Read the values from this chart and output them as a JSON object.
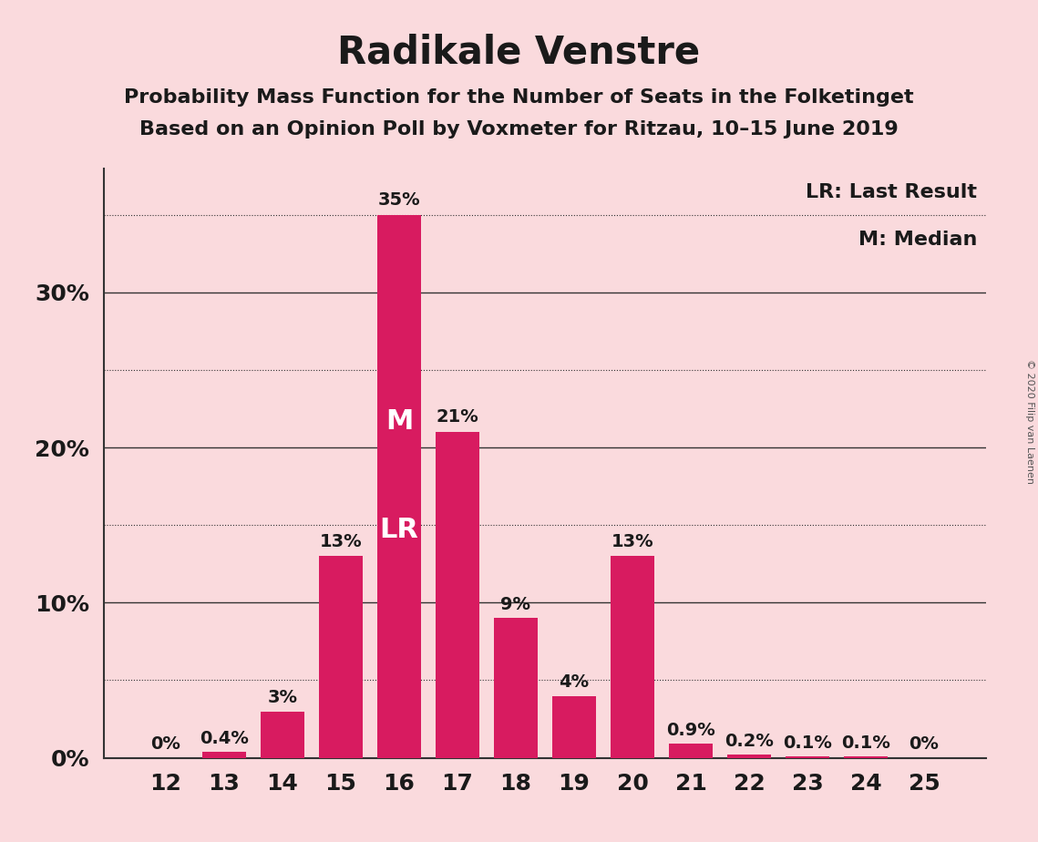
{
  "title": "Radikale Venstre",
  "subtitle1": "Probability Mass Function for the Number of Seats in the Folketinget",
  "subtitle2": "Based on an Opinion Poll by Voxmeter for Ritzau, 10–15 June 2019",
  "categories": [
    12,
    13,
    14,
    15,
    16,
    17,
    18,
    19,
    20,
    21,
    22,
    23,
    24,
    25
  ],
  "values": [
    0.0,
    0.4,
    3.0,
    13.0,
    35.0,
    21.0,
    9.0,
    4.0,
    13.0,
    0.9,
    0.2,
    0.1,
    0.1,
    0.0
  ],
  "labels": [
    "0%",
    "0.4%",
    "3%",
    "13%",
    "35%",
    "21%",
    "9%",
    "4%",
    "13%",
    "0.9%",
    "0.2%",
    "0.1%",
    "0.1%",
    "0%"
  ],
  "bar_color": "#D81B60",
  "background_color": "#FADADD",
  "text_color": "#1a1a1a",
  "median_seat": 16,
  "last_result_seat": 16,
  "legend_lr": "LR: Last Result",
  "legend_m": "M: Median",
  "ylim": [
    0,
    38
  ],
  "solid_grid_lines": [
    10,
    20,
    30
  ],
  "dotted_grid_lines": [
    5,
    15,
    25,
    35
  ],
  "ytick_positions": [
    0,
    10,
    20,
    30
  ],
  "ytick_labels": [
    "0%",
    "10%",
    "20%",
    "30%"
  ],
  "grid_color": "#333333",
  "copyright": "© 2020 Filip van Laenen",
  "title_fontsize": 30,
  "subtitle_fontsize": 16,
  "bar_label_fontsize": 14,
  "axis_fontsize": 18,
  "legend_fontsize": 16
}
